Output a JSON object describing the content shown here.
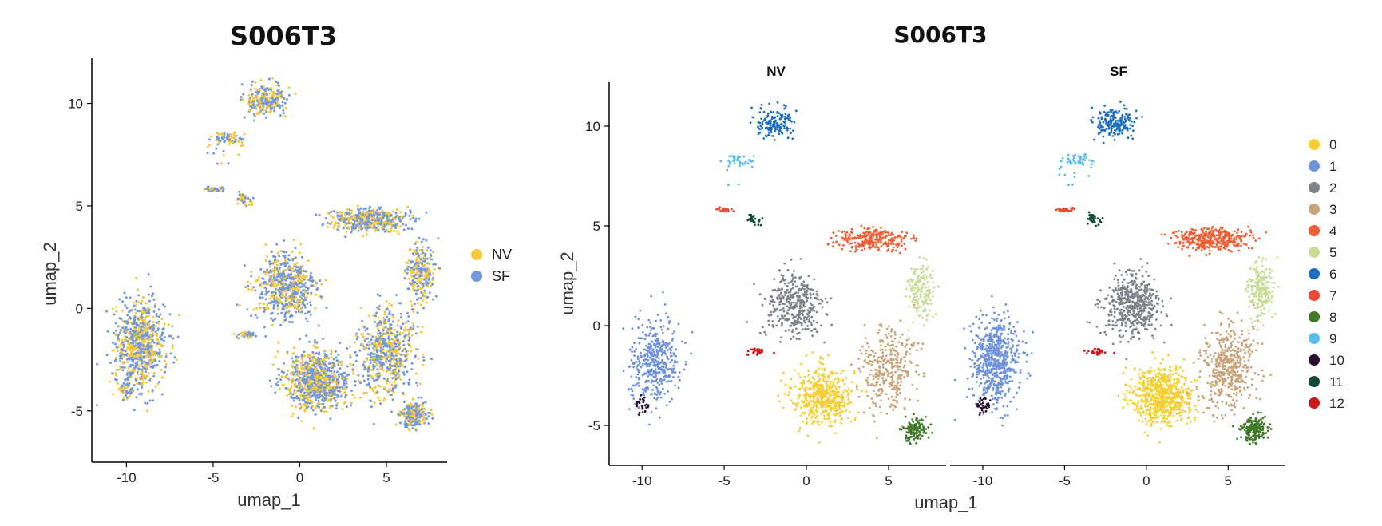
{
  "chart_data": [
    {
      "type": "scatter",
      "title": "S006T3",
      "xlabel": "umap_1",
      "ylabel": "umap_2",
      "xlim": [
        -12,
        8.5
      ],
      "ylim": [
        -7.5,
        12.2
      ],
      "xticks": [
        -10,
        -5,
        0,
        5
      ],
      "yticks": [
        -5,
        0,
        5,
        10
      ],
      "legend_position": "right",
      "legend": [
        {
          "label": "NV",
          "color": "#F5C83A"
        },
        {
          "label": "SF",
          "color": "#7399DB"
        }
      ]
    },
    {
      "type": "scatter",
      "title": "S006T3",
      "facets": [
        "NV",
        "SF"
      ],
      "xlabel": "umap_1",
      "ylabel": "umap_2",
      "xlim": [
        -12,
        8.5
      ],
      "ylim": [
        -7,
        12.2
      ],
      "xticks": [
        -10,
        -5,
        0,
        5
      ],
      "yticks": [
        -5,
        0,
        5,
        10
      ],
      "legend_position": "right",
      "legend": [
        {
          "label": "0",
          "color": "#F5CF33"
        },
        {
          "label": "1",
          "color": "#6F93DB"
        },
        {
          "label": "2",
          "color": "#7D8389"
        },
        {
          "label": "3",
          "color": "#C8A47A"
        },
        {
          "label": "4",
          "color": "#F06035"
        },
        {
          "label": "5",
          "color": "#C8DC96"
        },
        {
          "label": "6",
          "color": "#1F6EC0"
        },
        {
          "label": "7",
          "color": "#EA4A35"
        },
        {
          "label": "8",
          "color": "#3E7A28"
        },
        {
          "label": "9",
          "color": "#59BDEA"
        },
        {
          "label": "10",
          "color": "#2A0F30"
        },
        {
          "label": "11",
          "color": "#144A38"
        },
        {
          "label": "12",
          "color": "#C81818"
        }
      ],
      "clusters": [
        {
          "id": 0,
          "center": [
            1.0,
            -3.5
          ],
          "spread": [
            1.7,
            1.3
          ]
        },
        {
          "id": 1,
          "center": [
            -9.2,
            -1.8
          ],
          "spread": [
            1.3,
            1.9
          ]
        },
        {
          "id": 2,
          "center": [
            -0.8,
            1.0
          ],
          "spread": [
            1.6,
            1.5
          ]
        },
        {
          "id": 3,
          "center": [
            5.0,
            -2.0
          ],
          "spread": [
            1.5,
            2.0
          ]
        },
        {
          "id": 4,
          "center": [
            4.0,
            4.3
          ],
          "spread": [
            2.0,
            0.5
          ]
        },
        {
          "id": 5,
          "center": [
            7.0,
            1.8
          ],
          "spread": [
            0.7,
            1.3
          ]
        },
        {
          "id": 6,
          "center": [
            -1.9,
            10.2
          ],
          "spread": [
            1.0,
            0.7
          ]
        },
        {
          "id": 7,
          "center": [
            -5.0,
            5.8
          ],
          "spread": [
            0.4,
            0.1
          ]
        },
        {
          "id": 8,
          "center": [
            6.6,
            -5.2
          ],
          "spread": [
            0.7,
            0.6
          ]
        },
        {
          "id": 9,
          "center": [
            -4.2,
            8.3
          ],
          "spread": [
            0.7,
            0.3
          ]
        },
        {
          "id": 10,
          "center": [
            -10.0,
            -4.0
          ],
          "spread": [
            0.4,
            0.3
          ]
        },
        {
          "id": 11,
          "center": [
            -3.3,
            5.4
          ],
          "spread": [
            0.2,
            0.25
          ]
        },
        {
          "id": 12,
          "center": [
            -3.0,
            -1.3
          ],
          "spread": [
            0.6,
            0.15
          ]
        }
      ]
    }
  ]
}
